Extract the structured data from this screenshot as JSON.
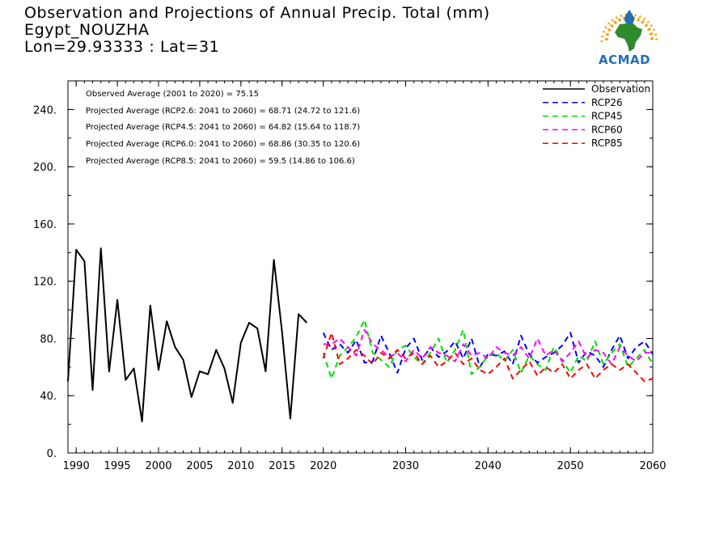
{
  "header": {
    "title_line1": "Observation and Projections of Annual Precip. Total (mm)",
    "title_line2": "Egypt_NOUZHA",
    "title_line3": "Lon=29.93333 : Lat=31"
  },
  "logo": {
    "text": "ACMAD",
    "colors": {
      "africa": "#2e8b2e",
      "rays": "#f2a51a",
      "drop": "#1f6fb5",
      "text": "#1f6fb5"
    }
  },
  "notes": [
    "Observed Average (2001 to 2020) = 75.15",
    "Projected Average (RCP2.6: 2041 to 2060) = 68.71 (24.72 to 121.6)",
    "Projected Average (RCP4.5: 2041 to 2060) = 64.82 (15.64 to 118.7)",
    "Projected Average (RCP6.0: 2041 to 2060) = 68.86 (30.35 to 120.6)",
    "Projected Average (RCP8.5: 2041 to 2060) = 59.5 (14.86 to 106.6)"
  ],
  "chart_data": {
    "type": "line",
    "xlim": [
      1989,
      2060
    ],
    "ylim": [
      0,
      260
    ],
    "x_ticks": [
      "1990",
      "1995",
      "2000",
      "2005",
      "2010",
      "2015",
      "2020",
      "2030",
      "2040",
      "2050",
      "2060"
    ],
    "x_tick_values": [
      1990,
      1995,
      2000,
      2005,
      2010,
      2015,
      2020,
      2030,
      2040,
      2050,
      2060
    ],
    "y_ticks": [
      "0.",
      "40.",
      "80.",
      "120.",
      "160.",
      "200.",
      "240."
    ],
    "y_tick_values": [
      0,
      40,
      80,
      120,
      160,
      200,
      240
    ],
    "legend_position": "top-right",
    "series": [
      {
        "name": "Observation",
        "color": "#000000",
        "dash": false,
        "x": [
          1989,
          1990,
          1991,
          1992,
          1993,
          1994,
          1995,
          1996,
          1997,
          1998,
          1999,
          2000,
          2001,
          2002,
          2003,
          2004,
          2005,
          2006,
          2007,
          2008,
          2009,
          2010,
          2011,
          2012,
          2013,
          2014,
          2015,
          2016,
          2017,
          2018,
          2019,
          2020
        ],
        "values": [
          50,
          142,
          134,
          44,
          143,
          57,
          107,
          51,
          59,
          22,
          103,
          58,
          92,
          74,
          65,
          39,
          57,
          55,
          72,
          59,
          35,
          77,
          91,
          87,
          57,
          135,
          84,
          24,
          97,
          91,
          null,
          null
        ]
      },
      {
        "name": "RCP26",
        "color": "#0000ff",
        "dash": true,
        "x": [
          2020,
          2021,
          2022,
          2023,
          2024,
          2025,
          2026,
          2027,
          2028,
          2029,
          2030,
          2031,
          2032,
          2033,
          2034,
          2035,
          2036,
          2037,
          2038,
          2039,
          2040,
          2041,
          2042,
          2043,
          2044,
          2045,
          2046,
          2047,
          2048,
          2049,
          2050,
          2051,
          2052,
          2053,
          2054,
          2055,
          2056,
          2057,
          2058,
          2059,
          2060
        ],
        "values": [
          84,
          72,
          76,
          70,
          79,
          63,
          64,
          82,
          70,
          56,
          73,
          80,
          65,
          74,
          67,
          71,
          78,
          66,
          80,
          60,
          69,
          68,
          71,
          62,
          82,
          69,
          63,
          67,
          70,
          75,
          84,
          63,
          71,
          68,
          60,
          72,
          82,
          66,
          74,
          78,
          69
        ]
      },
      {
        "name": "RCP45",
        "color": "#00dd00",
        "dash": true,
        "x": [
          2020,
          2021,
          2022,
          2023,
          2024,
          2025,
          2026,
          2027,
          2028,
          2029,
          2030,
          2031,
          2032,
          2033,
          2034,
          2035,
          2036,
          2037,
          2038,
          2039,
          2040,
          2041,
          2042,
          2043,
          2044,
          2045,
          2046,
          2047,
          2048,
          2049,
          2050,
          2051,
          2052,
          2053,
          2054,
          2055,
          2056,
          2057,
          2058,
          2059,
          2060
        ],
        "values": [
          70,
          52,
          68,
          74,
          81,
          93,
          70,
          65,
          60,
          72,
          75,
          67,
          62,
          70,
          80,
          63,
          72,
          86,
          55,
          60,
          68,
          70,
          64,
          72,
          56,
          68,
          62,
          58,
          74,
          65,
          56,
          68,
          64,
          78,
          62,
          70,
          76,
          60,
          66,
          72,
          62
        ]
      },
      {
        "name": "RCP60",
        "color": "#ff00ff",
        "dash": true,
        "x": [
          2020,
          2021,
          2022,
          2023,
          2024,
          2025,
          2026,
          2027,
          2028,
          2029,
          2030,
          2031,
          2032,
          2033,
          2034,
          2035,
          2036,
          2037,
          2038,
          2039,
          2040,
          2041,
          2042,
          2043,
          2044,
          2045,
          2046,
          2047,
          2048,
          2049,
          2050,
          2051,
          2052,
          2053,
          2054,
          2055,
          2056,
          2057,
          2058,
          2059,
          2060
        ],
        "values": [
          76,
          76,
          80,
          74,
          68,
          86,
          76,
          72,
          67,
          70,
          64,
          72,
          66,
          74,
          70,
          68,
          64,
          76,
          68,
          70,
          66,
          74,
          70,
          68,
          74,
          66,
          80,
          68,
          72,
          64,
          70,
          78,
          66,
          72,
          70,
          62,
          74,
          68,
          64,
          70,
          70
        ]
      },
      {
        "name": "RCP85",
        "color": "#ff0000",
        "dash": true,
        "x": [
          2020,
          2021,
          2022,
          2023,
          2024,
          2025,
          2026,
          2027,
          2028,
          2029,
          2030,
          2031,
          2032,
          2033,
          2034,
          2035,
          2036,
          2037,
          2038,
          2039,
          2040,
          2041,
          2042,
          2043,
          2044,
          2045,
          2046,
          2047,
          2048,
          2049,
          2050,
          2051,
          2052,
          2053,
          2054,
          2055,
          2056,
          2057,
          2058,
          2059,
          2060
        ],
        "values": [
          66,
          84,
          62,
          66,
          72,
          68,
          62,
          70,
          66,
          72,
          66,
          70,
          62,
          68,
          60,
          64,
          70,
          62,
          66,
          58,
          55,
          60,
          66,
          52,
          58,
          64,
          54,
          60,
          56,
          62,
          52,
          58,
          62,
          52,
          58,
          62,
          58,
          62,
          56,
          50,
          52
        ]
      }
    ]
  }
}
